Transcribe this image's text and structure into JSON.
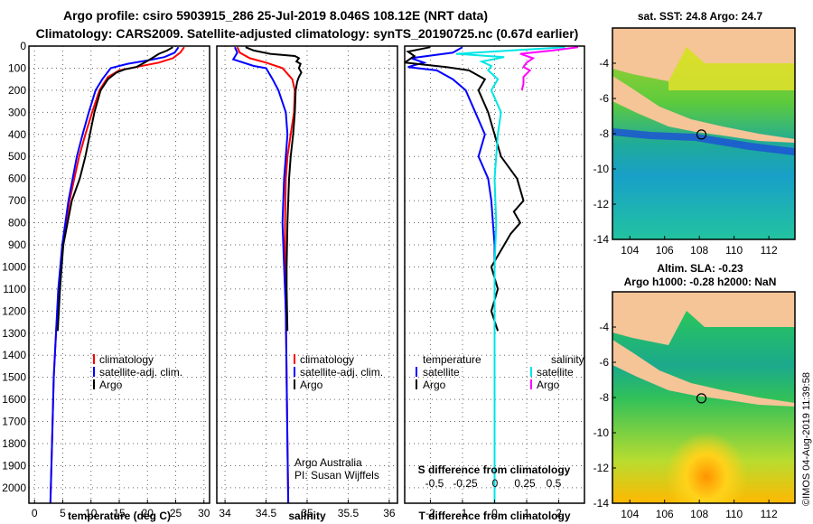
{
  "title": {
    "line1": "Argo profile: csiro 5903915_286 25-Jul-2019 8.046S 108.12E (NRT data)",
    "line2": "Climatology: CARS2009. Satellite-adjusted climatology: synTS_20190725.nc (0.67d earlier)"
  },
  "colors": {
    "climatology": "#ff0000",
    "satellite": "#0000ff",
    "argo": "#000000",
    "sat_salinity": "#00e5e5",
    "argo_salinity": "#ff00ff",
    "land": "#f5c497"
  },
  "credits": {
    "line1": "Argo Australia",
    "line2": "PI: Susan Wijffels"
  },
  "stamp": "©IMOS 04-Aug-2019 11:39:58",
  "chart_data": [
    {
      "type": "line",
      "name": "temperature-panel",
      "xlabel": "temperature (deg C)",
      "ylabel": "",
      "xlim": [
        -1,
        31
      ],
      "ylim": [
        0,
        2070
      ],
      "y_inverted": true,
      "xticks": [
        0,
        5,
        10,
        15,
        20,
        25,
        30
      ],
      "yticks": [
        0,
        100,
        200,
        300,
        400,
        500,
        600,
        700,
        800,
        900,
        1000,
        1100,
        1200,
        1300,
        1400,
        1500,
        1600,
        1700,
        1800,
        1900,
        2000
      ],
      "legend": [
        "climatology",
        "satellite-adj. clim.",
        "Argo"
      ],
      "series": [
        {
          "name": "climatology",
          "color": "#ff0000",
          "x": [
            26.5,
            25.8,
            24.5,
            22,
            18,
            15,
            13,
            11.5,
            10.2,
            9,
            7.9,
            6.2,
            5,
            4.3,
            3.8,
            3.4,
            3.1,
            2.8
          ],
          "y": [
            5,
            30,
            55,
            75,
            95,
            110,
            140,
            200,
            300,
            400,
            500,
            700,
            900,
            1100,
            1300,
            1500,
            1800,
            2070
          ]
        },
        {
          "name": "satellite-adj. clim.",
          "color": "#0000ff",
          "x": [
            25.5,
            24.8,
            23,
            20,
            16.5,
            13.5,
            12,
            10.8,
            9.6,
            8.5,
            7.5,
            6,
            4.9,
            4.2,
            3.8,
            3.4,
            3.1,
            2.8
          ],
          "y": [
            5,
            30,
            50,
            65,
            80,
            100,
            150,
            200,
            300,
            400,
            500,
            700,
            900,
            1100,
            1300,
            1500,
            1800,
            2070
          ]
        },
        {
          "name": "Argo",
          "color": "#000000",
          "x": [
            24.5,
            23.5,
            22,
            20.8,
            19.5,
            18,
            16,
            14.5,
            13,
            11.7,
            10.6,
            9.8,
            9,
            8,
            6.6,
            5.1,
            4.5,
            4.1
          ],
          "y": [
            5,
            20,
            35,
            55,
            75,
            95,
            105,
            120,
            150,
            200,
            300,
            400,
            500,
            600,
            700,
            900,
            1100,
            1290
          ]
        }
      ]
    },
    {
      "type": "line",
      "name": "salinity-panel",
      "xlabel": "salinity",
      "xlim": [
        33.9,
        36.1
      ],
      "ylim": [
        0,
        2070
      ],
      "y_inverted": true,
      "xticks": [
        34,
        34.5,
        35,
        35.5,
        36
      ],
      "legend": [
        "climatology",
        "satellite-adj. clim.",
        "Argo"
      ],
      "series": [
        {
          "name": "climatology",
          "color": "#ff0000",
          "x": [
            34.15,
            34.18,
            34.3,
            34.5,
            34.7,
            34.82,
            34.85,
            34.84,
            34.8,
            34.76,
            34.74,
            34.73,
            34.73,
            34.74,
            34.75,
            34.76,
            34.77
          ],
          "y": [
            5,
            30,
            55,
            75,
            100,
            150,
            200,
            300,
            400,
            500,
            600,
            800,
            1000,
            1200,
            1500,
            1800,
            2070
          ]
        },
        {
          "name": "satellite-adj. clim.",
          "color": "#0000ff",
          "x": [
            34.12,
            34.15,
            34.1,
            34.35,
            34.5,
            34.58,
            34.65,
            34.74,
            34.76,
            34.74,
            34.72,
            34.7,
            34.72,
            34.74,
            34.75,
            34.76,
            34.77
          ],
          "y": [
            5,
            30,
            60,
            90,
            100,
            150,
            200,
            300,
            400,
            500,
            600,
            800,
            1000,
            1200,
            1500,
            1800,
            2070
          ]
        },
        {
          "name": "Argo",
          "color": "#000000",
          "x": [
            34.25,
            34.35,
            34.55,
            34.85,
            34.9,
            34.87,
            34.92,
            34.9,
            34.93,
            34.9,
            34.88,
            34.87,
            34.86,
            34.85,
            34.83,
            34.8,
            34.78,
            34.77,
            34.76,
            34.75,
            34.75,
            34.76
          ],
          "y": [
            5,
            20,
            35,
            45,
            55,
            70,
            80,
            100,
            120,
            140,
            160,
            180,
            200,
            300,
            400,
            500,
            600,
            700,
            800,
            1000,
            1100,
            1290
          ]
        }
      ]
    },
    {
      "type": "line",
      "name": "difference-panel",
      "xlabel": "T difference from climatology",
      "x2label": "S difference from climatology",
      "xlim": [
        -2.8,
        2.8
      ],
      "ylim": [
        0,
        2070
      ],
      "y_inverted": true,
      "xticks": [
        -2,
        -1,
        0,
        1,
        2
      ],
      "x2ticks": [
        "-0.5",
        "-0.25",
        "0",
        "0.25",
        "0.5"
      ],
      "legend_left_title": "temperature",
      "legend_right_title": "salinity",
      "legend_left": [
        "satellite",
        "Argo"
      ],
      "legend_right": [
        "satellite",
        "Argo"
      ],
      "series": [
        {
          "name": "temperature satellite",
          "color": "#0000ff",
          "x": [
            -1,
            -1.3,
            -2.6,
            -2.2,
            -2.7,
            -1.8,
            -1.3,
            -0.9,
            -0.6,
            -0.3,
            -0.5,
            -0.2,
            -0.1,
            0,
            0,
            0,
            0,
            0
          ],
          "y": [
            5,
            30,
            55,
            75,
            95,
            110,
            150,
            200,
            300,
            400,
            500,
            600,
            700,
            900,
            1100,
            1300,
            1600,
            2070
          ]
        },
        {
          "name": "temperature Argo",
          "color": "#000000",
          "x": [
            -2,
            -2.7,
            -2.5,
            -2.8,
            -1.5,
            -0.8,
            -0.3,
            -0.5,
            -0.2,
            0,
            0.2,
            0.7,
            0.9,
            0.6,
            0.8,
            0.5,
            0.3,
            -0.1,
            0.1,
            -0.1,
            0.1
          ],
          "y": [
            5,
            25,
            45,
            75,
            95,
            110,
            150,
            200,
            300,
            400,
            500,
            600,
            700,
            750,
            800,
            850,
            900,
            1000,
            1100,
            1200,
            1290
          ]
        },
        {
          "name": "salinity satellite",
          "color": "#00e5e5",
          "x": [
            2.2,
            0.5,
            -1.2,
            0.3,
            -0.4,
            -0.1,
            -0.2,
            0.1,
            -0.1,
            0.2,
            0.1,
            0,
            0.05,
            0,
            0,
            0,
            0,
            0
          ],
          "y": [
            5,
            20,
            35,
            50,
            70,
            90,
            110,
            150,
            200,
            300,
            400,
            600,
            800,
            1000,
            1300,
            1600,
            1900,
            2070
          ]
        },
        {
          "name": "salinity Argo",
          "color": "#ff00ff",
          "x": [
            2.6,
            1.8,
            0.8,
            1.2,
            1,
            0.9,
            1.1,
            0.9,
            0.9,
            0.85
          ],
          "y": [
            5,
            20,
            35,
            55,
            75,
            95,
            110,
            140,
            170,
            200
          ]
        }
      ]
    },
    {
      "type": "heatmap",
      "name": "sst-map",
      "title": "sat. SST: 24.8 Argo: 24.7",
      "xticks": [
        104,
        106,
        108,
        110,
        112
      ],
      "yticks": [
        -4,
        -6,
        -8,
        -10,
        -12,
        -14
      ],
      "xlim": [
        103,
        113.5
      ],
      "ylim": [
        -14,
        -2
      ],
      "argo_position": [
        108.12,
        -8.046
      ]
    },
    {
      "type": "heatmap",
      "name": "sla-map",
      "title_line1": "Altim. SLA: -0.23",
      "title_line2": "Argo h1000: -0.28 h2000: NaN",
      "xticks": [
        104,
        106,
        108,
        110,
        112
      ],
      "yticks": [
        -4,
        -6,
        -8,
        -10,
        -12,
        -14
      ],
      "xlim": [
        103,
        113.5
      ],
      "ylim": [
        -14,
        -2
      ],
      "argo_position": [
        108.12,
        -8.046
      ]
    }
  ]
}
